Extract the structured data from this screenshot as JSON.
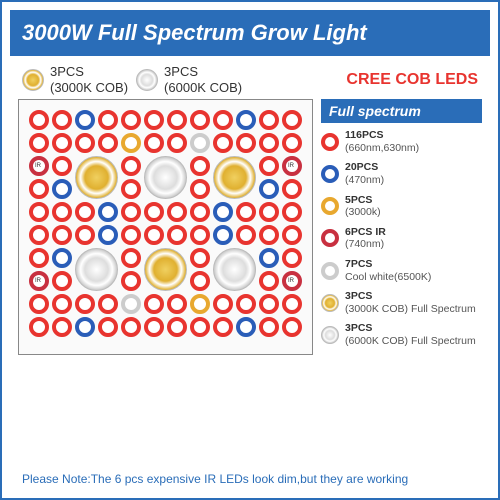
{
  "title": "3000W Full Spectrum Grow Light",
  "top": {
    "warm": {
      "qty": "3PCS",
      "sub": "(3000K COB)"
    },
    "cool": {
      "qty": "3PCS",
      "sub": "(6000K COB)"
    },
    "cree": "CREE COB LEDS"
  },
  "legend": {
    "title": "Full spectrum",
    "items": [
      {
        "color": "#e8342f",
        "qty": "116PCS",
        "sub": "(660nm,630nm)"
      },
      {
        "color": "#2a5db8",
        "qty": "20PCS",
        "sub": "(470nm)"
      },
      {
        "color": "#e8a82f",
        "qty": "5PCS",
        "sub": "(3000k)"
      },
      {
        "color": "#c83040",
        "qty": "6PCS IR",
        "sub": "(740nm)"
      },
      {
        "color": "#ccc",
        "qty": "7PCS",
        "sub": "Cool white(6500K)"
      }
    ],
    "cobs": [
      {
        "type": "warm",
        "qty": "3PCS",
        "sub": "(3000K COB) Full Spectrum"
      },
      {
        "type": "cool",
        "qty": "3PCS",
        "sub": "(6000K COB) Full Spectrum"
      }
    ]
  },
  "note": "Please Note:The 6 pcs expensive IR LEDs look dim,but they are working",
  "grid": [
    [
      "r",
      "r",
      "b",
      "r",
      "r",
      "r",
      "r",
      "r",
      "r",
      "b",
      "r",
      "r"
    ],
    [
      "r",
      "r",
      "r",
      "r",
      "y",
      "r",
      "r",
      "w",
      "r",
      "r",
      "r",
      "r"
    ],
    [
      "i",
      "r",
      "C",
      "C",
      "r",
      "W",
      "W",
      "r",
      "C",
      "C",
      "r",
      "i"
    ],
    [
      "r",
      "b",
      "C",
      "C",
      "r",
      "W",
      "W",
      "r",
      "C",
      "C",
      "b",
      "r"
    ],
    [
      "r",
      "r",
      "r",
      "b",
      "r",
      "r",
      "r",
      "r",
      "b",
      "r",
      "r",
      "r"
    ],
    [
      "r",
      "r",
      "r",
      "b",
      "r",
      "r",
      "r",
      "r",
      "b",
      "r",
      "r",
      "r"
    ],
    [
      "r",
      "b",
      "W",
      "W",
      "r",
      "C",
      "C",
      "r",
      "W",
      "W",
      "b",
      "r"
    ],
    [
      "i",
      "r",
      "W",
      "W",
      "r",
      "C",
      "C",
      "r",
      "W",
      "W",
      "r",
      "i"
    ],
    [
      "r",
      "r",
      "r",
      "r",
      "w",
      "r",
      "r",
      "y",
      "r",
      "r",
      "r",
      "r"
    ],
    [
      "r",
      "r",
      "b",
      "r",
      "r",
      "r",
      "r",
      "r",
      "r",
      "b",
      "r",
      "r"
    ]
  ],
  "colors": {
    "r": "#e8342f",
    "b": "#2a5db8",
    "y": "#e8a82f",
    "w": "#ccc",
    "i": "#c83040"
  }
}
